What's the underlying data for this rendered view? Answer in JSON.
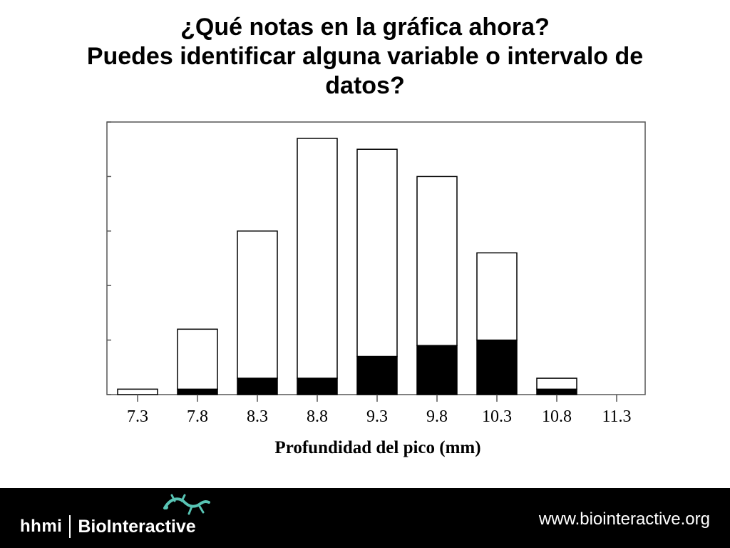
{
  "slide": {
    "title_lines": [
      "¿Qué notas en la gráfica ahora?",
      "Puedes identificar alguna variable o intervalo de",
      "datos?"
    ]
  },
  "footer": {
    "hhmi": "hhmi",
    "brand": "BioInteractive",
    "url": "www.biointeractive.org",
    "logo_icon": "lizard-icon"
  },
  "chart_data": {
    "type": "bar",
    "stacked": true,
    "categories": [
      "7.3",
      "7.8",
      "8.3",
      "8.8",
      "9.3",
      "9.8",
      "10.3",
      "10.8",
      "11.3"
    ],
    "series": [
      {
        "values": [
          0,
          1,
          3,
          3,
          7,
          9,
          10,
          1,
          0
        ],
        "color": "#000000"
      },
      {
        "values": [
          1,
          11,
          27,
          44,
          38,
          31,
          16,
          2,
          0
        ],
        "color": "#ffffff"
      }
    ],
    "xlabel": "Profundidad del pico (mm)",
    "ylabel": "",
    "ylim": [
      0,
      50
    ],
    "grid": false
  }
}
